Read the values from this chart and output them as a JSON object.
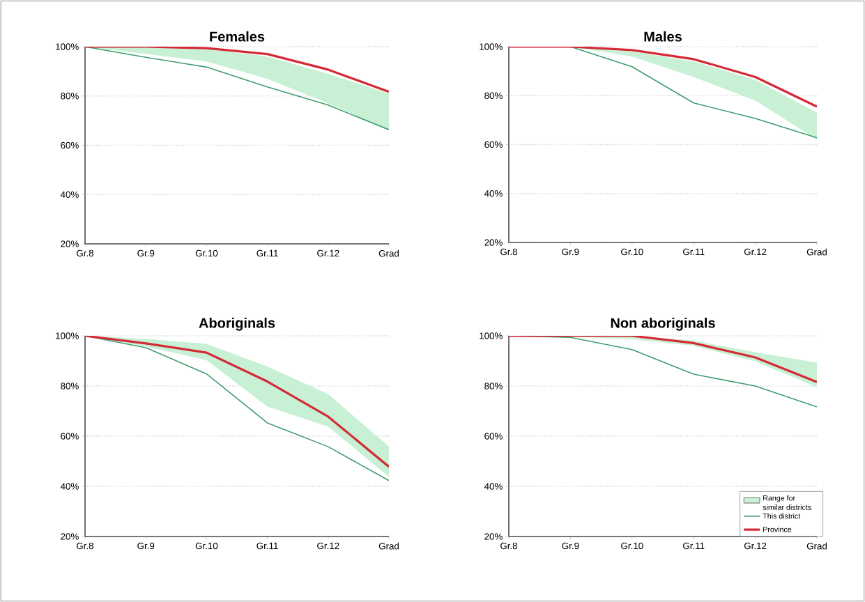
{
  "chart_data": [
    {
      "type": "line",
      "title": "Females",
      "categories": [
        "Gr.8",
        "Gr.9",
        "Gr.10",
        "Gr.11",
        "Gr.12",
        "Grad"
      ],
      "ylim": [
        20,
        100
      ],
      "yticks": [
        {
          "value": 20,
          "label": "20%"
        },
        {
          "value": 40,
          "label": "40%"
        },
        {
          "value": 60,
          "label": "60%"
        },
        {
          "value": 80,
          "label": "80%"
        },
        {
          "value": 100,
          "label": "100%"
        }
      ],
      "grid": "y",
      "series": [
        {
          "color": "#c8f0d4",
          "values": [
            null,
            null,
            null,
            null,
            null,
            null
          ],
          "lower": [
            100,
            97,
            94,
            87,
            77,
            66
          ],
          "upper": [
            100,
            100,
            99,
            96,
            89,
            81
          ]
        },
        {
          "color": "#3f9e70",
          "values": [
            100,
            95.7,
            91.7,
            83.7,
            76.3,
            66.3
          ]
        },
        {
          "color": "#d42a36",
          "values": [
            100,
            100,
            99.4,
            97,
            90.7,
            81.7
          ]
        }
      ]
    },
    {
      "type": "line",
      "title": "Males",
      "categories": [
        "Gr.8",
        "Gr.9",
        "Gr.10",
        "Gr.11",
        "Gr.12",
        "Grad"
      ],
      "ylim": [
        20,
        100
      ],
      "yticks": [
        {
          "value": 20,
          "label": "20%"
        },
        {
          "value": 40,
          "label": "40%"
        },
        {
          "value": 60,
          "label": "60%"
        },
        {
          "value": 80,
          "label": "80%"
        },
        {
          "value": 100,
          "label": "100%"
        }
      ],
      "grid": "y",
      "series": [
        {
          "color": "#c8f0d4",
          "values": [
            null,
            null,
            null,
            null,
            null,
            null
          ],
          "lower": [
            100,
            100,
            96,
            87.6,
            78,
            62
          ],
          "upper": [
            100,
            100,
            98,
            94,
            86.5,
            73
          ]
        },
        {
          "color": "#3f9e70",
          "values": [
            100,
            100,
            91.8,
            77,
            70.7,
            62.8
          ]
        },
        {
          "color": "#d42a36",
          "values": [
            100,
            100,
            98.6,
            94.9,
            87.6,
            75.5
          ]
        }
      ]
    },
    {
      "type": "line",
      "title": "Aboriginals",
      "categories": [
        "Gr.8",
        "Gr.9",
        "Gr.10",
        "Gr.11",
        "Gr.12",
        "Grad"
      ],
      "ylim": [
        20,
        100
      ],
      "yticks": [
        {
          "value": 20,
          "label": "20%"
        },
        {
          "value": 40,
          "label": "40%"
        },
        {
          "value": 60,
          "label": "60%"
        },
        {
          "value": 80,
          "label": "80%"
        },
        {
          "value": 100,
          "label": "100%"
        }
      ],
      "grid": "y",
      "series": [
        {
          "color": "#c8f0d4",
          "values": [
            null,
            null,
            null,
            null,
            null,
            null
          ],
          "lower": [
            100,
            95.8,
            90.3,
            71.8,
            63.8,
            43.8
          ],
          "upper": [
            100,
            98.8,
            96.8,
            87.8,
            76.8,
            55.8
          ]
        },
        {
          "color": "#3f9e70",
          "values": [
            100,
            95.3,
            84.8,
            65.3,
            55.8,
            42.3
          ]
        },
        {
          "color": "#d42a36",
          "values": [
            100,
            97,
            93.3,
            81.8,
            67.8,
            47.8
          ]
        }
      ]
    },
    {
      "type": "line",
      "title": "Non aboriginals",
      "categories": [
        "Gr.8",
        "Gr.9",
        "Gr.10",
        "Gr.11",
        "Gr.12",
        "Grad"
      ],
      "ylim": [
        20,
        100
      ],
      "yticks": [
        {
          "value": 20,
          "label": "20%"
        },
        {
          "value": 40,
          "label": "40%"
        },
        {
          "value": 60,
          "label": "60%"
        },
        {
          "value": 80,
          "label": "80%"
        },
        {
          "value": 100,
          "label": "100%"
        }
      ],
      "grid": "y",
      "legend": "bottom right",
      "series": [
        {
          "name": "Range for similar districts",
          "color": "#c8f0d4",
          "values": [
            null,
            null,
            null,
            null,
            null,
            null
          ],
          "lower": [
            100,
            99.7,
            98.7,
            96,
            89.8,
            79.5
          ],
          "upper": [
            100,
            100,
            100,
            98.1,
            93.5,
            89.3
          ]
        },
        {
          "name": "This district",
          "color": "#3f9e70",
          "values": [
            100,
            99.4,
            94.5,
            84.7,
            80,
            71.7
          ]
        },
        {
          "name": "Province",
          "color": "#d42a36",
          "values": [
            100,
            100,
            100,
            97.1,
            91.4,
            81.6
          ]
        }
      ]
    }
  ]
}
